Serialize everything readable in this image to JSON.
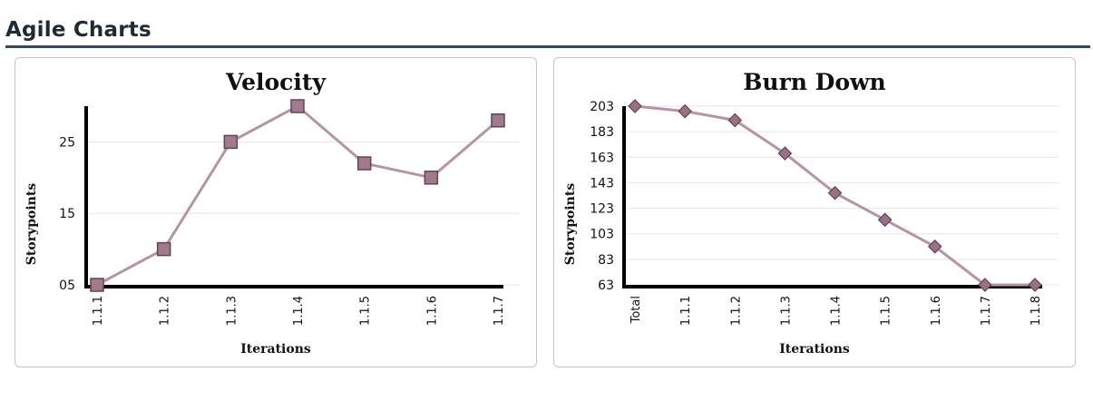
{
  "page": {
    "title": "Agile Charts"
  },
  "chart_data": [
    {
      "id": "velocity",
      "type": "line",
      "title": "Velocity",
      "xlabel": "Iterations",
      "ylabel": "Storypoints",
      "categories": [
        "1.1.1",
        "1.1.2",
        "1.1.3",
        "1.1.4",
        "1.1.5",
        "1.1.6",
        "1.1.7"
      ],
      "values": [
        5,
        10,
        25,
        30,
        22,
        20,
        28
      ],
      "yticks": [
        5,
        15,
        25
      ],
      "ytick_labels": [
        "05",
        "15",
        "25"
      ],
      "ylim": [
        5,
        30
      ],
      "marker": "square",
      "grid": true,
      "line_color": "#b693a6",
      "marker_color": "#a3798f"
    },
    {
      "id": "burndown",
      "type": "line",
      "title": "Burn Down",
      "xlabel": "Iterations",
      "ylabel": "Storypoints",
      "categories": [
        "Total",
        "1.1.1",
        "1.1.2",
        "1.1.3",
        "1.1.4",
        "1.1.5",
        "1.1.6",
        "1.1.7",
        "1.1.8"
      ],
      "values": [
        203,
        199,
        192,
        166,
        135,
        114,
        93,
        63,
        63
      ],
      "yticks": [
        63,
        83,
        103,
        123,
        143,
        163,
        183,
        203
      ],
      "ytick_labels": [
        "63",
        "83",
        "103",
        "123",
        "143",
        "163",
        "183",
        "203"
      ],
      "ylim": [
        63,
        203
      ],
      "marker": "diamond",
      "grid": true,
      "line_color": "#b693a6",
      "marker_color": "#9c6f87"
    }
  ]
}
